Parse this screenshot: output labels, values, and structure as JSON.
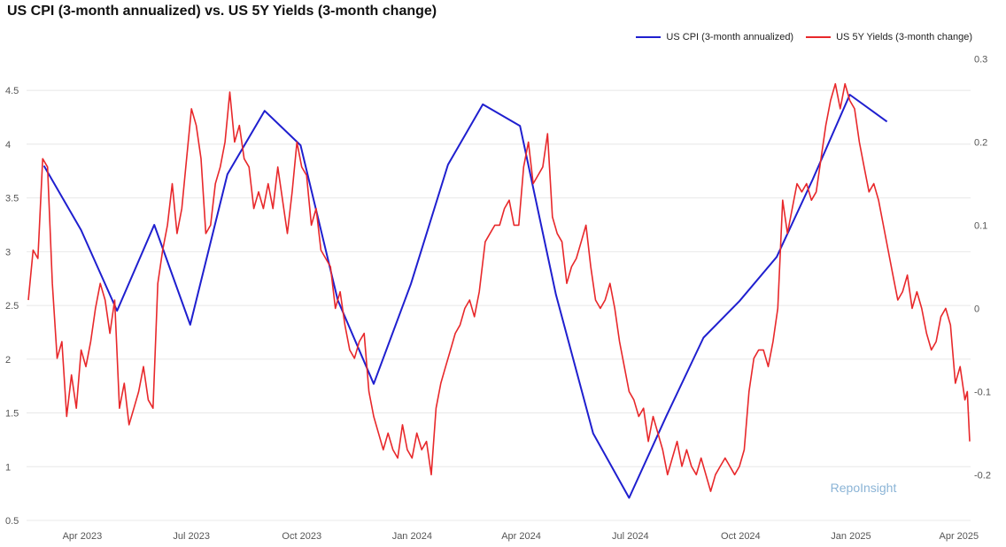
{
  "chart_data": {
    "type": "line",
    "title": "US CPI (3-month annualized) vs. US 5Y Yields (3-month change)",
    "watermark": "RepoInsight",
    "legend_position": "top-right",
    "grid": true,
    "x_axis": {
      "type": "date",
      "range": [
        "2023-02-15",
        "2025-04-10"
      ],
      "ticks": [
        {
          "date": "2023-04-01",
          "label": "Apr 2023"
        },
        {
          "date": "2023-07-01",
          "label": "Jul 2023"
        },
        {
          "date": "2023-10-01",
          "label": "Oct 2023"
        },
        {
          "date": "2024-01-01",
          "label": "Jan 2024"
        },
        {
          "date": "2024-04-01",
          "label": "Apr 2024"
        },
        {
          "date": "2024-07-01",
          "label": "Jul 2024"
        },
        {
          "date": "2024-10-01",
          "label": "Oct 2024"
        },
        {
          "date": "2025-01-01",
          "label": "Jan 2025"
        },
        {
          "date": "2025-04-01",
          "label": "Apr 2025"
        }
      ]
    },
    "y_left": {
      "range": [
        0.5,
        4.6
      ],
      "ticks": [
        "0.5",
        "1",
        "1.5",
        "2",
        "2.5",
        "3",
        "3.5",
        "4",
        "4.5"
      ]
    },
    "y_right": {
      "range": [
        -0.255,
        0.275
      ],
      "ticks": [
        "-0.2",
        "-0.1",
        "0",
        "0.1",
        "0.2",
        "0.3"
      ]
    },
    "series": [
      {
        "name": "US CPI (3-month annualized)",
        "color": "#1f1fcf",
        "axis": "left",
        "points": [
          [
            "2023-02-28",
            3.8
          ],
          [
            "2023-03-31",
            3.2
          ],
          [
            "2023-04-30",
            2.45
          ],
          [
            "2023-05-31",
            3.25
          ],
          [
            "2023-06-30",
            2.32
          ],
          [
            "2023-07-31",
            3.72
          ],
          [
            "2023-08-31",
            4.31
          ],
          [
            "2023-09-30",
            3.99
          ],
          [
            "2023-10-31",
            2.55
          ],
          [
            "2023-11-30",
            1.77
          ],
          [
            "2023-12-31",
            2.7
          ],
          [
            "2024-01-31",
            3.81
          ],
          [
            "2024-02-29",
            4.37
          ],
          [
            "2024-03-31",
            4.17
          ],
          [
            "2024-04-30",
            2.6
          ],
          [
            "2024-05-31",
            1.31
          ],
          [
            "2024-06-30",
            0.71
          ],
          [
            "2024-07-31",
            1.47
          ],
          [
            "2024-08-31",
            2.2
          ],
          [
            "2024-09-30",
            2.54
          ],
          [
            "2024-10-31",
            2.95
          ],
          [
            "2024-11-30",
            3.67
          ],
          [
            "2024-12-31",
            4.46
          ],
          [
            "2025-01-31",
            4.21
          ]
        ]
      },
      {
        "name": "US 5Y Yields (3-month change)",
        "color": "#e8282b",
        "axis": "right",
        "points": [
          [
            "2023-02-15",
            0.01
          ],
          [
            "2023-02-19",
            0.07
          ],
          [
            "2023-02-23",
            0.06
          ],
          [
            "2023-02-27",
            0.18
          ],
          [
            "2023-03-03",
            0.17
          ],
          [
            "2023-03-07",
            0.03
          ],
          [
            "2023-03-11",
            -0.06
          ],
          [
            "2023-03-15",
            -0.04
          ],
          [
            "2023-03-19",
            -0.13
          ],
          [
            "2023-03-23",
            -0.08
          ],
          [
            "2023-03-27",
            -0.12
          ],
          [
            "2023-03-31",
            -0.05
          ],
          [
            "2023-04-04",
            -0.07
          ],
          [
            "2023-04-08",
            -0.04
          ],
          [
            "2023-04-12",
            0.0
          ],
          [
            "2023-04-16",
            0.03
          ],
          [
            "2023-04-20",
            0.01
          ],
          [
            "2023-04-24",
            -0.03
          ],
          [
            "2023-04-28",
            0.01
          ],
          [
            "2023-05-02",
            -0.12
          ],
          [
            "2023-05-06",
            -0.09
          ],
          [
            "2023-05-10",
            -0.14
          ],
          [
            "2023-05-14",
            -0.12
          ],
          [
            "2023-05-18",
            -0.1
          ],
          [
            "2023-05-22",
            -0.07
          ],
          [
            "2023-05-26",
            -0.11
          ],
          [
            "2023-05-30",
            -0.12
          ],
          [
            "2023-06-03",
            0.03
          ],
          [
            "2023-06-07",
            0.07
          ],
          [
            "2023-06-11",
            0.1
          ],
          [
            "2023-06-15",
            0.15
          ],
          [
            "2023-06-19",
            0.09
          ],
          [
            "2023-06-23",
            0.12
          ],
          [
            "2023-06-27",
            0.18
          ],
          [
            "2023-07-01",
            0.24
          ],
          [
            "2023-07-05",
            0.22
          ],
          [
            "2023-07-09",
            0.18
          ],
          [
            "2023-07-13",
            0.09
          ],
          [
            "2023-07-17",
            0.1
          ],
          [
            "2023-07-21",
            0.15
          ],
          [
            "2023-07-25",
            0.17
          ],
          [
            "2023-07-29",
            0.2
          ],
          [
            "2023-08-02",
            0.26
          ],
          [
            "2023-08-06",
            0.2
          ],
          [
            "2023-08-10",
            0.22
          ],
          [
            "2023-08-14",
            0.18
          ],
          [
            "2023-08-18",
            0.17
          ],
          [
            "2023-08-22",
            0.12
          ],
          [
            "2023-08-26",
            0.14
          ],
          [
            "2023-08-30",
            0.12
          ],
          [
            "2023-09-03",
            0.15
          ],
          [
            "2023-09-07",
            0.12
          ],
          [
            "2023-09-11",
            0.17
          ],
          [
            "2023-09-15",
            0.13
          ],
          [
            "2023-09-19",
            0.09
          ],
          [
            "2023-09-23",
            0.14
          ],
          [
            "2023-09-27",
            0.2
          ],
          [
            "2023-10-01",
            0.17
          ],
          [
            "2023-10-05",
            0.16
          ],
          [
            "2023-10-09",
            0.1
          ],
          [
            "2023-10-13",
            0.12
          ],
          [
            "2023-10-17",
            0.07
          ],
          [
            "2023-10-21",
            0.06
          ],
          [
            "2023-10-25",
            0.05
          ],
          [
            "2023-10-29",
            0.0
          ],
          [
            "2023-11-02",
            0.02
          ],
          [
            "2023-11-06",
            -0.02
          ],
          [
            "2023-11-10",
            -0.05
          ],
          [
            "2023-11-14",
            -0.06
          ],
          [
            "2023-11-18",
            -0.04
          ],
          [
            "2023-11-22",
            -0.03
          ],
          [
            "2023-11-26",
            -0.1
          ],
          [
            "2023-11-30",
            -0.13
          ],
          [
            "2023-12-04",
            -0.15
          ],
          [
            "2023-12-08",
            -0.17
          ],
          [
            "2023-12-12",
            -0.15
          ],
          [
            "2023-12-16",
            -0.17
          ],
          [
            "2023-12-20",
            -0.18
          ],
          [
            "2023-12-24",
            -0.14
          ],
          [
            "2023-12-28",
            -0.17
          ],
          [
            "2024-01-01",
            -0.18
          ],
          [
            "2024-01-05",
            -0.15
          ],
          [
            "2024-01-09",
            -0.17
          ],
          [
            "2024-01-13",
            -0.16
          ],
          [
            "2024-01-17",
            -0.2
          ],
          [
            "2024-01-21",
            -0.12
          ],
          [
            "2024-01-25",
            -0.09
          ],
          [
            "2024-01-29",
            -0.07
          ],
          [
            "2024-02-02",
            -0.05
          ],
          [
            "2024-02-06",
            -0.03
          ],
          [
            "2024-02-10",
            -0.02
          ],
          [
            "2024-02-14",
            0.0
          ],
          [
            "2024-02-18",
            0.01
          ],
          [
            "2024-02-22",
            -0.01
          ],
          [
            "2024-02-26",
            0.02
          ],
          [
            "2024-03-02",
            0.08
          ],
          [
            "2024-03-06",
            0.09
          ],
          [
            "2024-03-10",
            0.1
          ],
          [
            "2024-03-14",
            0.1
          ],
          [
            "2024-03-18",
            0.12
          ],
          [
            "2024-03-22",
            0.13
          ],
          [
            "2024-03-26",
            0.1
          ],
          [
            "2024-03-30",
            0.1
          ],
          [
            "2024-04-03",
            0.17
          ],
          [
            "2024-04-07",
            0.2
          ],
          [
            "2024-04-11",
            0.15
          ],
          [
            "2024-04-15",
            0.16
          ],
          [
            "2024-04-19",
            0.17
          ],
          [
            "2024-04-23",
            0.21
          ],
          [
            "2024-04-27",
            0.11
          ],
          [
            "2024-05-01",
            0.09
          ],
          [
            "2024-05-05",
            0.08
          ],
          [
            "2024-05-09",
            0.03
          ],
          [
            "2024-05-13",
            0.05
          ],
          [
            "2024-05-17",
            0.06
          ],
          [
            "2024-05-21",
            0.08
          ],
          [
            "2024-05-25",
            0.1
          ],
          [
            "2024-05-29",
            0.05
          ],
          [
            "2024-06-02",
            0.01
          ],
          [
            "2024-06-06",
            0.0
          ],
          [
            "2024-06-10",
            0.01
          ],
          [
            "2024-06-14",
            0.03
          ],
          [
            "2024-06-18",
            0.0
          ],
          [
            "2024-06-22",
            -0.04
          ],
          [
            "2024-06-26",
            -0.07
          ],
          [
            "2024-06-30",
            -0.1
          ],
          [
            "2024-07-04",
            -0.11
          ],
          [
            "2024-07-08",
            -0.13
          ],
          [
            "2024-07-12",
            -0.12
          ],
          [
            "2024-07-16",
            -0.16
          ],
          [
            "2024-07-20",
            -0.13
          ],
          [
            "2024-07-24",
            -0.15
          ],
          [
            "2024-07-28",
            -0.17
          ],
          [
            "2024-08-01",
            -0.2
          ],
          [
            "2024-08-05",
            -0.18
          ],
          [
            "2024-08-09",
            -0.16
          ],
          [
            "2024-08-13",
            -0.19
          ],
          [
            "2024-08-17",
            -0.17
          ],
          [
            "2024-08-21",
            -0.19
          ],
          [
            "2024-08-25",
            -0.2
          ],
          [
            "2024-08-29",
            -0.18
          ],
          [
            "2024-09-02",
            -0.2
          ],
          [
            "2024-09-06",
            -0.22
          ],
          [
            "2024-09-10",
            -0.2
          ],
          [
            "2024-09-14",
            -0.19
          ],
          [
            "2024-09-18",
            -0.18
          ],
          [
            "2024-09-22",
            -0.19
          ],
          [
            "2024-09-26",
            -0.2
          ],
          [
            "2024-09-30",
            -0.19
          ],
          [
            "2024-10-04",
            -0.17
          ],
          [
            "2024-10-08",
            -0.1
          ],
          [
            "2024-10-12",
            -0.06
          ],
          [
            "2024-10-16",
            -0.05
          ],
          [
            "2024-10-20",
            -0.05
          ],
          [
            "2024-10-24",
            -0.07
          ],
          [
            "2024-10-28",
            -0.04
          ],
          [
            "2024-11-01",
            0.0
          ],
          [
            "2024-11-05",
            0.13
          ],
          [
            "2024-11-09",
            0.09
          ],
          [
            "2024-11-13",
            0.12
          ],
          [
            "2024-11-17",
            0.15
          ],
          [
            "2024-11-21",
            0.14
          ],
          [
            "2024-11-25",
            0.15
          ],
          [
            "2024-11-29",
            0.13
          ],
          [
            "2024-12-03",
            0.14
          ],
          [
            "2024-12-07",
            0.18
          ],
          [
            "2024-12-11",
            0.22
          ],
          [
            "2024-12-15",
            0.25
          ],
          [
            "2024-12-19",
            0.27
          ],
          [
            "2024-12-23",
            0.24
          ],
          [
            "2024-12-27",
            0.27
          ],
          [
            "2024-12-31",
            0.25
          ],
          [
            "2025-01-04",
            0.24
          ],
          [
            "2025-01-08",
            0.2
          ],
          [
            "2025-01-12",
            0.17
          ],
          [
            "2025-01-16",
            0.14
          ],
          [
            "2025-01-20",
            0.15
          ],
          [
            "2025-01-24",
            0.13
          ],
          [
            "2025-01-28",
            0.1
          ],
          [
            "2025-02-01",
            0.07
          ],
          [
            "2025-02-05",
            0.04
          ],
          [
            "2025-02-09",
            0.01
          ],
          [
            "2025-02-13",
            0.02
          ],
          [
            "2025-02-17",
            0.04
          ],
          [
            "2025-02-21",
            0.0
          ],
          [
            "2025-02-25",
            0.02
          ],
          [
            "2025-03-01",
            0.0
          ],
          [
            "2025-03-05",
            -0.03
          ],
          [
            "2025-03-09",
            -0.05
          ],
          [
            "2025-03-13",
            -0.04
          ],
          [
            "2025-03-17",
            -0.01
          ],
          [
            "2025-03-21",
            0.0
          ],
          [
            "2025-03-25",
            -0.02
          ],
          [
            "2025-03-29",
            -0.09
          ],
          [
            "2025-04-02",
            -0.07
          ],
          [
            "2025-04-06",
            -0.11
          ],
          [
            "2025-04-08",
            -0.1
          ],
          [
            "2025-04-10",
            -0.16
          ]
        ]
      }
    ]
  }
}
